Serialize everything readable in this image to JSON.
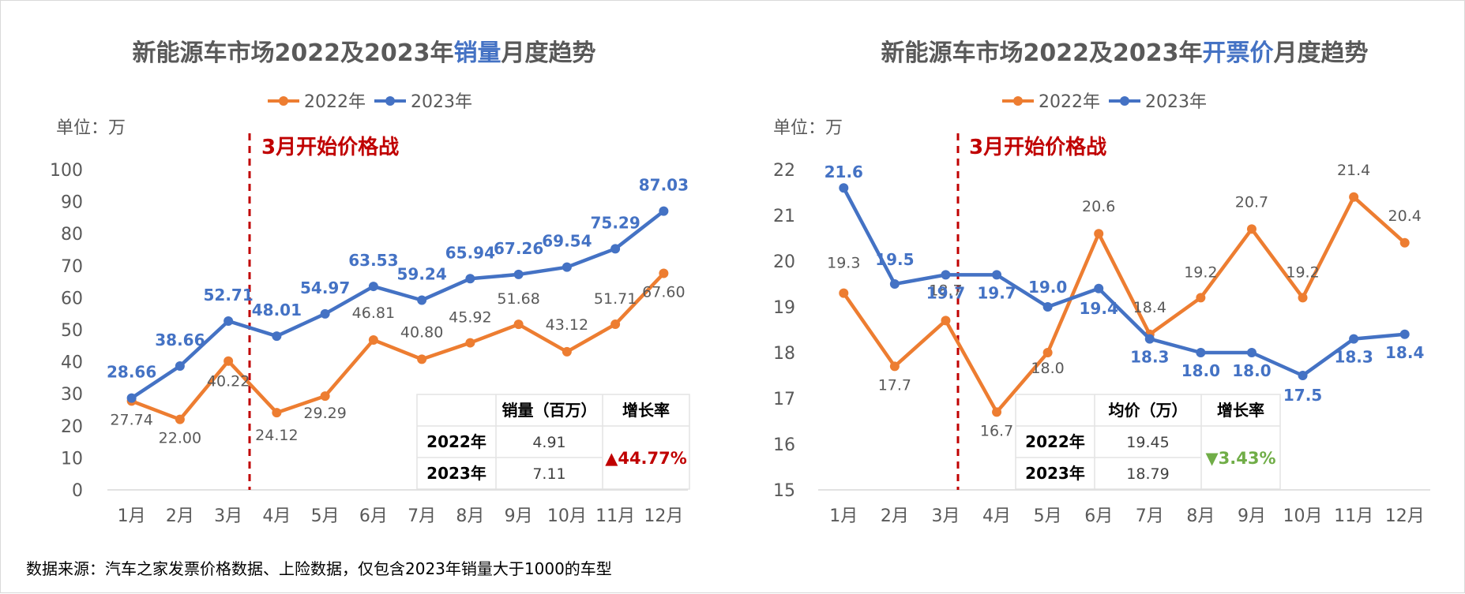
{
  "source": "数据来源：汽车之家发票价格数据、上险数据，仅包含2023年销量大于1000的车型",
  "colors": {
    "s2022": "#ed7d31",
    "s2023": "#4472c4",
    "annotation": "#c00000",
    "up": "#c00000",
    "down": "#70ad47"
  },
  "chart_data": [
    {
      "type": "line",
      "title": {
        "pre": "新能源车市场2022及2023年",
        "highlight": "销量",
        "post": "月度趋势"
      },
      "unit": "单位：万",
      "annotation": "3月开始价格战",
      "categories": [
        "1月",
        "2月",
        "3月",
        "4月",
        "5月",
        "6月",
        "7月",
        "8月",
        "9月",
        "10月",
        "11月",
        "12月"
      ],
      "ylim": [
        0,
        100
      ],
      "yticks": [
        0,
        10,
        20,
        30,
        40,
        50,
        60,
        70,
        80,
        90,
        100
      ],
      "y_labels": [
        "0",
        "10",
        "20",
        "30",
        "40",
        "50",
        "60",
        "70",
        "80",
        "90",
        "100"
      ],
      "series": [
        {
          "name": "2022年",
          "values": [
            27.74,
            22.0,
            40.22,
            24.12,
            29.29,
            46.81,
            40.8,
            45.92,
            51.68,
            43.12,
            51.71,
            67.6
          ],
          "labels": [
            "27.74",
            "22.00",
            "40.22",
            "24.12",
            "29.29",
            "46.81",
            "40.80",
            "45.92",
            "51.68",
            "43.12",
            "51.71",
            "67.60"
          ]
        },
        {
          "name": "2023年",
          "values": [
            28.66,
            38.66,
            52.71,
            48.01,
            54.97,
            63.53,
            59.24,
            65.94,
            67.26,
            69.54,
            75.29,
            87.03
          ],
          "labels": [
            "28.66",
            "38.66",
            "52.71",
            "48.01",
            "54.97",
            "63.53",
            "59.24",
            "65.94",
            "67.26",
            "69.54",
            "75.29",
            "87.03"
          ]
        }
      ],
      "table": {
        "headers": [
          "",
          "销量（百万）",
          "增长率"
        ],
        "rows": [
          {
            "year": "2022年",
            "value": "4.91"
          },
          {
            "year": "2023年",
            "value": "7.11"
          }
        ],
        "growth": "▲44.77%",
        "direction": "up"
      }
    },
    {
      "type": "line",
      "title": {
        "pre": "新能源车市场2022及2023年",
        "highlight": "开票价",
        "post": "月度趋势"
      },
      "unit": "单位：万",
      "annotation": "3月开始价格战",
      "categories": [
        "1月",
        "2月",
        "3月",
        "4月",
        "5月",
        "6月",
        "7月",
        "8月",
        "9月",
        "10月",
        "11月",
        "12月"
      ],
      "ylim": [
        15,
        22
      ],
      "yticks": [
        15,
        16,
        17,
        18,
        19,
        20,
        21,
        22
      ],
      "y_labels": [
        "15",
        "16",
        "17",
        "18",
        "19",
        "20",
        "21",
        "22"
      ],
      "series": [
        {
          "name": "2022年",
          "values": [
            19.3,
            17.7,
            18.7,
            16.7,
            18.0,
            20.6,
            18.4,
            19.2,
            20.7,
            19.2,
            21.4,
            20.4
          ],
          "labels": [
            "19.3",
            "17.7",
            "18.7",
            "16.7",
            "18.0",
            "20.6",
            "18.4",
            "19.2",
            "20.7",
            "19.2",
            "21.4",
            "20.4"
          ]
        },
        {
          "name": "2023年",
          "values": [
            21.6,
            19.5,
            19.7,
            19.7,
            19.0,
            19.4,
            18.3,
            18.0,
            18.0,
            17.5,
            18.3,
            18.4
          ],
          "labels": [
            "21.6",
            "19.5",
            "19.7",
            "19.7",
            "19.0",
            "19.4",
            "18.3",
            "18.0",
            "18.0",
            "17.5",
            "18.3",
            "18.4"
          ]
        }
      ],
      "table": {
        "headers": [
          "",
          "均价（万）",
          "增长率"
        ],
        "rows": [
          {
            "year": "2022年",
            "value": "19.45"
          },
          {
            "year": "2023年",
            "value": "18.79"
          }
        ],
        "growth": "▼3.43%",
        "direction": "down"
      }
    }
  ]
}
